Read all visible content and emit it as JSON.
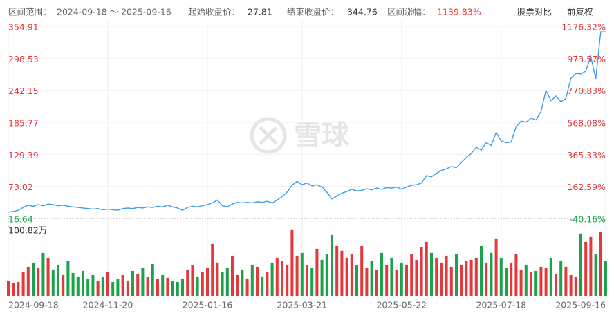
{
  "header": {
    "range_label": "区间范围：",
    "range_value": "2024-09-18 ～ 2025-09-16",
    "start_label": "起始收盘价：",
    "start_value": "27.81",
    "end_label": "结束收盘价：",
    "end_value": "344.76",
    "change_label": "区间涨幅：",
    "change_value": "1139.83%",
    "compare": "股票对比",
    "adjust": "前复权"
  },
  "watermark": "雪球",
  "chart_data": {
    "type": "line",
    "categories": [
      "2024-09-18",
      null,
      null,
      null,
      null,
      null,
      null,
      null,
      null,
      null,
      null,
      null,
      null,
      null,
      null,
      null,
      null,
      null,
      null,
      null,
      "2024-11-20",
      null,
      null,
      null,
      null,
      null,
      null,
      null,
      null,
      null,
      null,
      null,
      null,
      null,
      null,
      null,
      null,
      null,
      null,
      null,
      "2025-01-16",
      null,
      null,
      null,
      null,
      null,
      null,
      null,
      null,
      null,
      null,
      null,
      null,
      null,
      null,
      null,
      null,
      null,
      null,
      "2025-03-21",
      null,
      null,
      null,
      null,
      null,
      null,
      null,
      null,
      null,
      null,
      null,
      null,
      null,
      null,
      null,
      null,
      null,
      null,
      null,
      "2025-05-22",
      null,
      null,
      null,
      null,
      null,
      null,
      null,
      null,
      null,
      null,
      null,
      null,
      null,
      null,
      null,
      null,
      null,
      null,
      null,
      "2025-07-18",
      null,
      null,
      null,
      null,
      null,
      null,
      null,
      null,
      null,
      null,
      null,
      null,
      null,
      null,
      null,
      null,
      null,
      null,
      null,
      null,
      "2025-09-16"
    ],
    "series": [
      {
        "color": "#3a9bf0",
        "values": [
          27.81,
          29,
          31,
          36,
          40,
          38,
          41,
          39,
          42,
          41,
          39,
          40,
          38,
          37,
          36,
          35,
          34,
          33,
          34,
          32,
          33,
          32,
          31,
          34,
          35,
          34,
          36,
          35,
          37,
          36,
          38,
          37,
          40,
          37,
          35,
          31,
          36,
          38,
          37,
          39,
          41,
          44,
          49,
          39,
          37,
          42,
          45,
          44,
          45,
          44,
          46,
          45,
          47,
          44,
          49,
          55,
          63,
          75,
          82,
          76,
          79,
          74,
          76,
          72,
          63,
          51,
          56,
          61,
          64,
          68,
          65,
          66,
          69,
          67,
          70,
          68,
          71,
          70,
          72,
          68,
          72,
          75,
          76,
          79,
          92,
          90,
          96,
          101,
          104,
          108,
          106,
          115,
          124,
          131,
          142,
          137,
          150,
          145,
          168,
          153,
          150,
          151,
          178,
          188,
          186,
          193,
          190,
          205,
          242,
          224,
          232,
          222,
          228,
          263,
          272,
          271,
          276,
          302,
          262,
          345,
          344.76
        ]
      }
    ],
    "ylim": [
      16.64,
      354.91
    ],
    "yticks": [
      16.64,
      73.02,
      129.39,
      185.77,
      242.15,
      298.53,
      354.91
    ],
    "y2lim": [
      -40.16,
      1176.32
    ],
    "y2ticks": [
      {
        "value": -40.16,
        "label": "-40.16%"
      },
      {
        "value": 162.59,
        "label": "162.59%"
      },
      {
        "value": 365.33,
        "label": "365.33%"
      },
      {
        "value": 568.08,
        "label": "568.08%"
      },
      {
        "value": 770.83,
        "label": "770.83%"
      },
      {
        "value": 973.57,
        "label": "973.57%"
      },
      {
        "value": 1176.32,
        "label": "1176.32%"
      }
    ],
    "up_color": "#e4393c",
    "down_color": "#1aa34a",
    "grid": true,
    "volume": {
      "type": "bar",
      "values": [
        22,
        18,
        20,
        35,
        42,
        48,
        40,
        62,
        55,
        38,
        45,
        30,
        50,
        33,
        28,
        36,
        25,
        30,
        22,
        27,
        35,
        20,
        24,
        30,
        22,
        36,
        32,
        40,
        28,
        46,
        24,
        30,
        26,
        22,
        20,
        25,
        38,
        44,
        28,
        35,
        40,
        75,
        48,
        35,
        40,
        58,
        30,
        38,
        25,
        45,
        42,
        28,
        35,
        48,
        55,
        50,
        45,
        96,
        58,
        62,
        45,
        40,
        68,
        52,
        60,
        88,
        72,
        65,
        55,
        60,
        45,
        72,
        40,
        50,
        38,
        62,
        45,
        55,
        38,
        48,
        45,
        60,
        52,
        70,
        78,
        62,
        55,
        48,
        58,
        42,
        60,
        45,
        50,
        52,
        55,
        72,
        48,
        62,
        82,
        55,
        40,
        48,
        60,
        38,
        45,
        34,
        36,
        42,
        40,
        55,
        32,
        50,
        42,
        30,
        28,
        90,
        78,
        85,
        60,
        92,
        50
      ],
      "ylim": [
        0,
        100.82
      ],
      "yticks": [
        {
          "value": 100.82,
          "label": "100.82万"
        }
      ]
    }
  }
}
